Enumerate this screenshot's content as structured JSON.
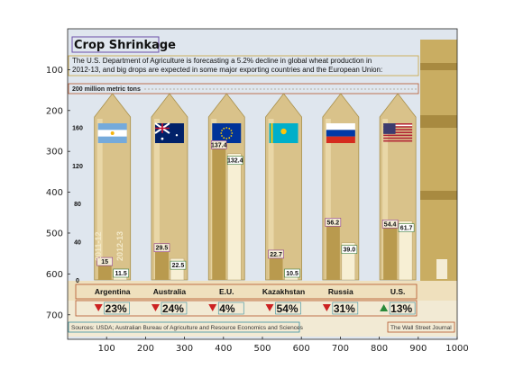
{
  "chart_data": {
    "type": "bar",
    "title": "Crop Shrinkage",
    "subtitle": "The U.S. Department of Agriculture is forecasting a 5.2% decline in global wheat production in 2012-13, and big drops are expected in some major exporting countries and the European Union:",
    "scale_label": "200 million metric tons",
    "inner_ticks": [
      0,
      40,
      80,
      120,
      160
    ],
    "categories": [
      "Argentina",
      "Australia",
      "E.U.",
      "Kazakhstan",
      "Russia",
      "U.S."
    ],
    "flags": [
      "argentina-flag",
      "australia-flag",
      "eu-flag",
      "kazakhstan-flag",
      "russia-flag",
      "us-flag"
    ],
    "series": [
      {
        "name": "2011-12",
        "values": [
          15,
          29.5,
          137.4,
          22.7,
          56.2,
          54.4
        ]
      },
      {
        "name": "2012-13",
        "values": [
          11.5,
          22.5,
          132.4,
          10.5,
          39.0,
          61.7
        ]
      }
    ],
    "value_labels": [
      [
        "15",
        "11.5"
      ],
      [
        "29.5",
        "22.5"
      ],
      [
        "137.4",
        "132.4"
      ],
      [
        "22.7",
        "10.5"
      ],
      [
        "56.2",
        "39.0"
      ],
      [
        "54.4",
        "61.7"
      ]
    ],
    "changes": [
      "23%",
      "24%",
      "4%",
      "54%",
      "31%",
      "13%"
    ],
    "change_direction": [
      "down",
      "down",
      "down",
      "down",
      "down",
      "up"
    ],
    "source": "Sources: USDA; Australian Bureau of Agriculture and Resource Economics and Sciences",
    "credit": "The Wall Street Journal",
    "image_axes": {
      "x_ticks": [
        100,
        200,
        300,
        400,
        500,
        600,
        700,
        800,
        900,
        1000
      ],
      "y_ticks": [
        100,
        200,
        300,
        400,
        500,
        600,
        700
      ],
      "xlim": [
        0,
        1000
      ],
      "ylim": [
        760,
        0
      ]
    },
    "colors": {
      "down": "#cc2222",
      "up": "#2a8a3a",
      "silo": "#d9c28a",
      "background": "#dfe6ee"
    }
  }
}
